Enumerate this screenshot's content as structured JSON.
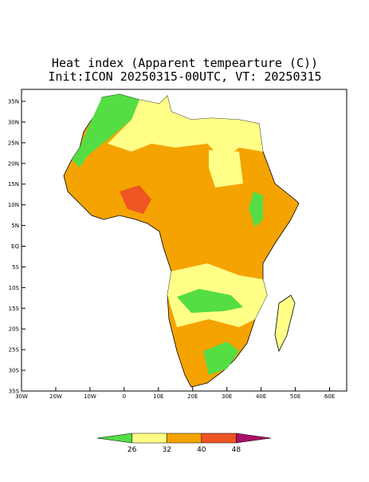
{
  "title": "Heat index (Apparent tempearture (C))",
  "subtitle": "Init:ICON 20250315-00UTC, VT: 20250315",
  "map": {
    "xlim": [
      -30,
      65
    ],
    "ylim": [
      -35,
      37.9
    ],
    "yticks": [
      {
        "value": 35,
        "label": "35N"
      },
      {
        "value": 30,
        "label": "30N"
      },
      {
        "value": 25,
        "label": "25N"
      },
      {
        "value": 20,
        "label": "20N"
      },
      {
        "value": 15,
        "label": "15N"
      },
      {
        "value": 10,
        "label": "10N"
      },
      {
        "value": 5,
        "label": "5N"
      },
      {
        "value": 0,
        "label": "EQ"
      },
      {
        "value": -5,
        "label": "5S"
      },
      {
        "value": -10,
        "label": "10S"
      },
      {
        "value": -15,
        "label": "15S"
      },
      {
        "value": -20,
        "label": "20S"
      },
      {
        "value": -25,
        "label": "25S"
      },
      {
        "value": -30,
        "label": "30S"
      },
      {
        "value": -35,
        "label": "35S"
      }
    ],
    "xticks": [
      {
        "value": -30,
        "label": "30W"
      },
      {
        "value": -20,
        "label": "20W"
      },
      {
        "value": -10,
        "label": "10W"
      },
      0,
      {
        "value": 10,
        "label": "10E"
      },
      {
        "value": 20,
        "label": "20E"
      },
      {
        "value": 30,
        "label": "30E"
      },
      {
        "value": 40,
        "label": "40E"
      },
      {
        "value": 50,
        "label": "50E"
      },
      {
        "value": 60,
        "label": "60E"
      }
    ]
  },
  "colorbar": {
    "ticks": [
      26,
      32,
      40,
      48
    ],
    "colors": [
      "#55dd44",
      "#ffff88",
      "#f5a300",
      "#ee5522",
      "#aa1166"
    ]
  }
}
